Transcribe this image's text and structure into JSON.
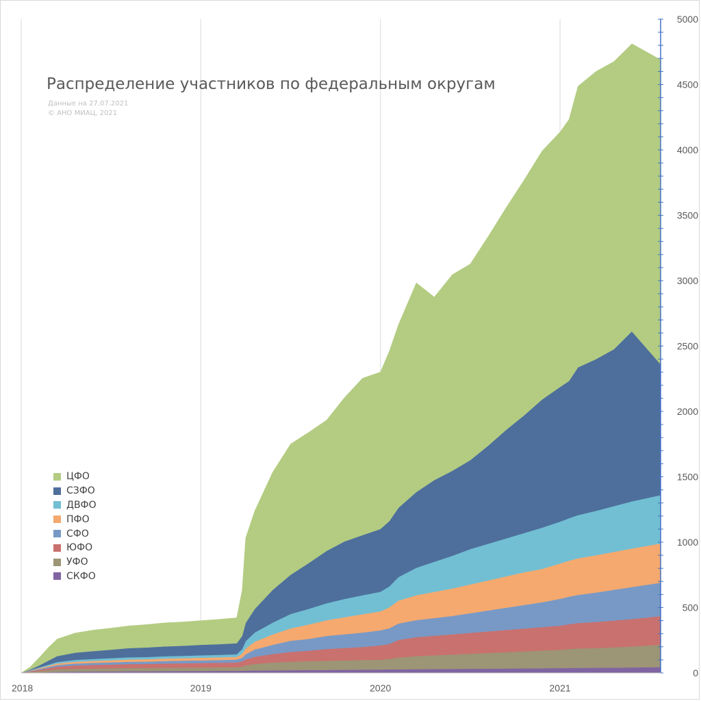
{
  "chart_data": {
    "type": "area",
    "stacked": true,
    "title": "Распределение участников по федеральным округам",
    "notes": [
      "Данные на 27.07.2021",
      "© АНО МИАЦ, 2021"
    ],
    "x_ticks": [
      "2018",
      "2019",
      "2020",
      "2021"
    ],
    "x": [
      2018.0,
      2018.05,
      2018.1,
      2018.15,
      2018.2,
      2018.3,
      2018.4,
      2018.5,
      2018.6,
      2018.7,
      2018.8,
      2018.9,
      2019.0,
      2019.1,
      2019.2,
      2019.23,
      2019.25,
      2019.3,
      2019.4,
      2019.5,
      2019.6,
      2019.7,
      2019.8,
      2019.9,
      2020.0,
      2020.05,
      2020.1,
      2020.2,
      2020.3,
      2020.4,
      2020.5,
      2020.6,
      2020.7,
      2020.8,
      2020.9,
      2021.0,
      2021.05,
      2021.1,
      2021.2,
      2021.3,
      2021.4,
      2021.56
    ],
    "ylim": [
      0,
      5000
    ],
    "y_ticks": [
      0,
      500,
      1000,
      1500,
      2000,
      2500,
      3000,
      3500,
      4000,
      4500,
      5000
    ],
    "y_axis_position": "right",
    "legend_position": "left",
    "grid": "vertical",
    "series": [
      {
        "name": "СКФО",
        "color": "#8064a2",
        "values": [
          0,
          2,
          4,
          6,
          8,
          10,
          11,
          12,
          13,
          13,
          14,
          15,
          15,
          16,
          16,
          17,
          18,
          19,
          20,
          21,
          22,
          23,
          24,
          25,
          26,
          27,
          28,
          29,
          30,
          31,
          32,
          33,
          34,
          35,
          36,
          37,
          38,
          39,
          40,
          41,
          42,
          45
        ]
      },
      {
        "name": "УФО",
        "color": "#9c9576",
        "values": [
          0,
          5,
          10,
          15,
          20,
          22,
          23,
          24,
          25,
          25,
          26,
          26,
          27,
          27,
          28,
          32,
          40,
          50,
          60,
          65,
          68,
          70,
          72,
          74,
          75,
          80,
          90,
          100,
          105,
          110,
          115,
          120,
          125,
          130,
          135,
          140,
          145,
          148,
          150,
          155,
          160,
          170
        ]
      },
      {
        "name": "ЮФО",
        "color": "#c9716f",
        "values": [
          0,
          5,
          10,
          15,
          20,
          25,
          27,
          28,
          30,
          31,
          32,
          33,
          34,
          35,
          36,
          40,
          45,
          55,
          65,
          75,
          80,
          90,
          95,
          100,
          110,
          115,
          135,
          145,
          150,
          155,
          160,
          165,
          170,
          175,
          180,
          185,
          190,
          195,
          200,
          205,
          210,
          220
        ]
      },
      {
        "name": "СФО",
        "color": "#7899c6",
        "values": [
          0,
          3,
          6,
          9,
          12,
          15,
          16,
          17,
          18,
          18,
          19,
          20,
          20,
          21,
          22,
          28,
          40,
          55,
          70,
          85,
          90,
          100,
          105,
          110,
          115,
          120,
          125,
          130,
          135,
          140,
          150,
          160,
          170,
          180,
          190,
          205,
          210,
          215,
          225,
          235,
          245,
          255
        ]
      },
      {
        "name": "ПФО",
        "color": "#f5a96e",
        "values": [
          0,
          3,
          6,
          9,
          12,
          14,
          15,
          16,
          17,
          18,
          19,
          19,
          20,
          20,
          21,
          30,
          45,
          60,
          80,
          95,
          110,
          120,
          130,
          140,
          145,
          160,
          175,
          190,
          200,
          210,
          220,
          230,
          240,
          250,
          255,
          270,
          275,
          280,
          285,
          290,
          295,
          300
        ]
      },
      {
        "name": "ДВФО",
        "color": "#72bfd4",
        "values": [
          0,
          3,
          6,
          9,
          12,
          14,
          15,
          16,
          17,
          17,
          18,
          18,
          19,
          19,
          20,
          35,
          55,
          70,
          90,
          110,
          120,
          130,
          140,
          145,
          150,
          160,
          180,
          210,
          230,
          250,
          270,
          280,
          290,
          300,
          315,
          320,
          325,
          330,
          340,
          350,
          360,
          370
        ]
      },
      {
        "name": "СЗФО",
        "color": "#4e6f9b",
        "values": [
          0,
          5,
          15,
          30,
          45,
          55,
          60,
          65,
          70,
          73,
          75,
          77,
          80,
          82,
          84,
          100,
          140,
          180,
          250,
          300,
          350,
          400,
          440,
          460,
          480,
          500,
          530,
          580,
          625,
          650,
          680,
          750,
          830,
          900,
          980,
          1030,
          1050,
          1130,
          1160,
          1200,
          1300,
          1000
        ]
      },
      {
        "name": "ЦФО",
        "color": "#b3cc82",
        "values": [
          0,
          20,
          60,
          100,
          130,
          150,
          160,
          165,
          170,
          175,
          180,
          182,
          185,
          190,
          195,
          350,
          650,
          750,
          900,
          1000,
          1000,
          1000,
          1100,
          1200,
          1200,
          1300,
          1400,
          1600,
          1400,
          1500,
          1500,
          1600,
          1700,
          1800,
          1900,
          1950,
          2000,
          2150,
          2200,
          2200,
          2200,
          2330
        ]
      }
    ]
  }
}
